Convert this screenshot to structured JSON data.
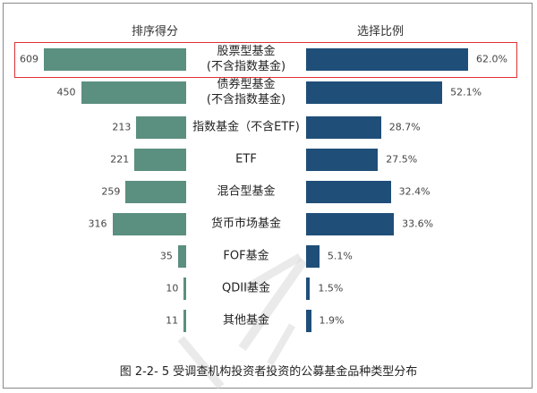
{
  "chart_data": {
    "type": "bar",
    "layout": "butterfly (diverging horizontal bars, left and right panels)",
    "caption": "图 2-2- 5 受调查机构投资者投资的公募基金品种类型分布",
    "left_title": "排序得分",
    "right_title": "选择比例",
    "categories": [
      "股票型基金(不含指数基金)",
      "债券型基金(不含指数基金)",
      "指数基金（不含ETF)",
      "ETF",
      "混合型基金",
      "货币市场基金",
      "FOF基金",
      "QDII基金",
      "其他基金"
    ],
    "category_lines": [
      [
        "股票型基金",
        "(不含指数基金)"
      ],
      [
        "债券型基金",
        "(不含指数基金)"
      ],
      [
        "指数基金（不含ETF)"
      ],
      [
        "ETF"
      ],
      [
        "混合型基金"
      ],
      [
        "货币市场基金"
      ],
      [
        "FOF基金"
      ],
      [
        "QDII基金"
      ],
      [
        "其他基金"
      ]
    ],
    "series": [
      {
        "name": "排序得分",
        "side": "left",
        "color": "#5b8f80",
        "values": [
          609,
          450,
          213,
          221,
          259,
          316,
          35,
          10,
          11
        ],
        "labels": [
          "609",
          "450",
          "213",
          "221",
          "259",
          "316",
          "35",
          "10",
          "11"
        ]
      },
      {
        "name": "选择比例",
        "side": "right",
        "color": "#1f4e79",
        "unit": "%",
        "values": [
          62.0,
          52.1,
          28.7,
          27.5,
          32.4,
          33.6,
          5.1,
          1.5,
          1.9
        ],
        "labels": [
          "62.0%",
          "52.1%",
          "28.7%",
          "27.5%",
          "32.4%",
          "33.6%",
          "5.1%",
          "1.5%",
          "1.9%"
        ]
      }
    ],
    "highlighted_category": "股票型基金(不含指数基金)",
    "highlight_color": "#e03030",
    "grid": false,
    "legend": "none (column titles above each panel)"
  },
  "titles": {
    "left": "排序得分",
    "right": "选择比例"
  },
  "caption": "图 2-2- 5 受调查机构投资者投资的公募基金品种类型分布",
  "rows": [
    {
      "cat1": "股票型基金",
      "cat2": "(不含指数基金)",
      "score": "609",
      "pct": "62.0%"
    },
    {
      "cat1": "债券型基金",
      "cat2": "(不含指数基金)",
      "score": "450",
      "pct": "52.1%"
    },
    {
      "cat1": "指数基金（不含ETF)",
      "cat2": "",
      "score": "213",
      "pct": "28.7%"
    },
    {
      "cat1": "ETF",
      "cat2": "",
      "score": "221",
      "pct": "27.5%"
    },
    {
      "cat1": "混合型基金",
      "cat2": "",
      "score": "259",
      "pct": "32.4%"
    },
    {
      "cat1": "货币市场基金",
      "cat2": "",
      "score": "316",
      "pct": "33.6%"
    },
    {
      "cat1": "FOF基金",
      "cat2": "",
      "score": "35",
      "pct": "5.1%"
    },
    {
      "cat1": "QDII基金",
      "cat2": "",
      "score": "10",
      "pct": "1.5%"
    },
    {
      "cat1": "其他基金",
      "cat2": "",
      "score": "11",
      "pct": "1.9%"
    }
  ]
}
